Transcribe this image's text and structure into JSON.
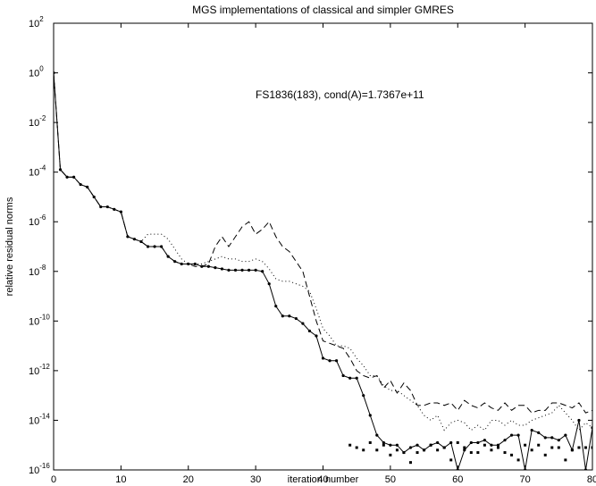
{
  "chart_data": {
    "type": "line",
    "title": "MGS implementations of classical and simpler GMRES",
    "xlabel": "iteration number",
    "ylabel": "relative residual norms",
    "annotation": "FS1836(183), cond(A)=1.7367e+11",
    "xlim": [
      0,
      80
    ],
    "ylim": [
      1e-16,
      100
    ],
    "yscale": "log",
    "grid": false,
    "x_ticks": [
      0,
      10,
      20,
      30,
      40,
      50,
      60,
      70,
      80
    ],
    "x_tick_labels": [
      "0",
      "10",
      "20",
      "30",
      "40",
      "50",
      "60",
      "70",
      "80"
    ],
    "y_ticks": [
      -16,
      -14,
      -12,
      -10,
      -8,
      -6,
      -4,
      -2,
      0,
      2
    ],
    "y_tick_labels": [
      {
        "base": "10",
        "exp": "-16"
      },
      {
        "base": "10",
        "exp": "-14"
      },
      {
        "base": "10",
        "exp": "-12"
      },
      {
        "base": "10",
        "exp": "-10"
      },
      {
        "base": "10",
        "exp": "-8"
      },
      {
        "base": "10",
        "exp": "-6"
      },
      {
        "base": "10",
        "exp": "-4"
      },
      {
        "base": "10",
        "exp": "-2"
      },
      {
        "base": "10",
        "exp": "0"
      },
      {
        "base": "10",
        "exp": "2"
      }
    ],
    "x": [
      0,
      1,
      2,
      3,
      4,
      5,
      6,
      7,
      8,
      9,
      10,
      11,
      12,
      13,
      14,
      15,
      16,
      17,
      18,
      19,
      20,
      21,
      22,
      23,
      24,
      25,
      26,
      27,
      28,
      29,
      30,
      31,
      32,
      33,
      34,
      35,
      36,
      37,
      38,
      39,
      40,
      41,
      42,
      43,
      44,
      45,
      46,
      47,
      48,
      49,
      50,
      51,
      52,
      53,
      54,
      55,
      56,
      57,
      58,
      59,
      60,
      61,
      62,
      63,
      64,
      65,
      66,
      67,
      68,
      69,
      70,
      71,
      72,
      73,
      74,
      75,
      76,
      77,
      78,
      79,
      80
    ],
    "series": [
      {
        "style": "solid-markers",
        "color": "#000000",
        "log10_values": [
          0,
          -3.9,
          -4.2,
          -4.2,
          -4.5,
          -4.6,
          -5.0,
          -5.4,
          -5.4,
          -5.5,
          -5.6,
          -6.6,
          -6.7,
          -6.8,
          -7.0,
          -7.0,
          -7.0,
          -7.4,
          -7.6,
          -7.7,
          -7.7,
          -7.7,
          -7.8,
          -7.8,
          -7.85,
          -7.9,
          -7.95,
          -7.95,
          -7.95,
          -7.95,
          -7.95,
          -8.0,
          -8.5,
          -9.4,
          -9.8,
          -9.8,
          -9.9,
          -10.1,
          -10.4,
          -10.6,
          -11.5,
          -11.6,
          -11.6,
          -12.2,
          -12.3,
          -12.3,
          -13.0,
          -13.8,
          -14.6,
          -14.9,
          -15.0,
          -15.0,
          -15.3,
          -15.1,
          -15.0,
          -15.2,
          -15.0,
          -14.9,
          -15.1,
          -14.9,
          -16.0,
          -15.2,
          -14.9,
          -14.9,
          -14.8,
          -15.0,
          -15.0,
          -14.8,
          -14.6,
          -14.6,
          -16.0,
          -14.4,
          -14.5,
          -14.7,
          -14.7,
          -14.8,
          -14.6,
          -15.2,
          -14.0,
          -16.0,
          -14.3
        ]
      },
      {
        "style": "dotted",
        "color": "#000000",
        "log10_values": [
          0,
          -3.9,
          -4.2,
          -4.2,
          -4.5,
          -4.6,
          -5.0,
          -5.4,
          -5.4,
          -5.5,
          -5.6,
          -6.6,
          -6.7,
          -6.8,
          -6.5,
          -6.5,
          -6.5,
          -6.7,
          -7.1,
          -7.5,
          -7.7,
          -7.7,
          -7.7,
          -7.6,
          -7.5,
          -7.4,
          -7.5,
          -7.5,
          -7.6,
          -7.6,
          -7.5,
          -7.6,
          -7.9,
          -8.3,
          -8.4,
          -8.4,
          -8.5,
          -8.6,
          -8.8,
          -9.5,
          -10.3,
          -10.6,
          -11.0,
          -11.0,
          -11.1,
          -11.5,
          -11.8,
          -12.2,
          -12.2,
          -12.6,
          -12.8,
          -12.8,
          -13.0,
          -13.2,
          -13.4,
          -13.8,
          -14.0,
          -13.8,
          -14.4,
          -14.1,
          -14.0,
          -14.1,
          -14.4,
          -14.2,
          -14.4,
          -14.0,
          -14.0,
          -14.2,
          -14.0,
          -14.2,
          -14.2,
          -14.0,
          -13.9,
          -13.8,
          -13.7,
          -13.4,
          -13.7,
          -14.0,
          -14.4,
          -14.1,
          -14.3
        ]
      },
      {
        "style": "dashed",
        "color": "#000000",
        "log10_values": [
          0,
          -3.9,
          -4.2,
          -4.2,
          -4.5,
          -4.6,
          -5.0,
          -5.4,
          -5.4,
          -5.5,
          -5.6,
          -6.6,
          -6.7,
          -6.8,
          -7.0,
          -7.0,
          -7.0,
          -7.4,
          -7.6,
          -7.7,
          -7.7,
          -7.8,
          -7.8,
          -7.7,
          -7.0,
          -6.6,
          -7.0,
          -6.6,
          -6.2,
          -6.0,
          -6.5,
          -6.3,
          -6.0,
          -6.6,
          -7.0,
          -7.2,
          -7.6,
          -8.0,
          -9.0,
          -10.0,
          -10.8,
          -10.9,
          -11.0,
          -11.1,
          -11.5,
          -12.0,
          -12.2,
          -12.3,
          -12.2,
          -12.7,
          -12.4,
          -12.9,
          -12.5,
          -12.8,
          -13.4,
          -13.4,
          -13.3,
          -13.3,
          -13.4,
          -13.3,
          -13.6,
          -13.2,
          -13.4,
          -13.5,
          -13.3,
          -13.5,
          -13.6,
          -13.3,
          -13.6,
          -13.4,
          -13.4,
          -13.7,
          -13.6,
          -13.6,
          -13.3,
          -13.3,
          -13.4,
          -13.5,
          -13.3,
          -13.7,
          -13.6
        ]
      },
      {
        "style": "dots-only",
        "color": "#000000",
        "x": [
          44,
          45,
          46,
          47,
          48,
          49,
          50,
          51,
          52,
          53,
          54,
          55,
          56,
          57,
          58,
          59,
          60,
          61,
          62,
          63,
          64,
          65,
          66,
          67,
          68,
          69,
          70,
          71,
          72,
          73,
          74,
          75,
          76,
          77,
          78,
          79,
          80
        ],
        "log10_values": [
          -15.0,
          -15.1,
          -15.2,
          -14.9,
          -15.2,
          -15.0,
          -15.4,
          -15.2,
          -15.3,
          -15.7,
          -15.3,
          -15.2,
          -15.0,
          -15.2,
          -15.1,
          -15.6,
          -14.9,
          -15.1,
          -15.3,
          -15.3,
          -15.0,
          -15.2,
          -15.1,
          -15.3,
          -15.4,
          -15.6,
          -15.0,
          -15.2,
          -15.0,
          -15.4,
          -15.1,
          -15.1,
          -15.6,
          -15.2,
          -15.1,
          -15.1,
          -15.1
        ]
      }
    ]
  }
}
